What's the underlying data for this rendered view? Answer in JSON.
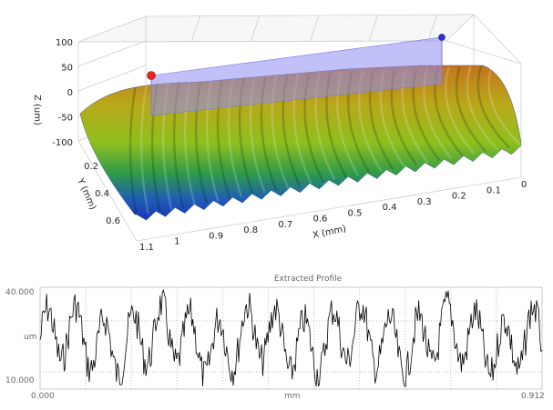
{
  "view3d": {
    "z_axis_label": "Z (um)",
    "y_axis_label": "Y (mm)",
    "x_axis_label": "X (mm)",
    "z_ticks": [
      "100",
      "50",
      "0",
      "-50",
      "-100"
    ],
    "y_ticks": [
      "0.2",
      "0.4",
      "0.6"
    ],
    "x_ticks": [
      "1.1",
      "1",
      "0.9",
      "0.8",
      "0.7",
      "0.6",
      "0.5",
      "0.4",
      "0.3",
      "0.2",
      "0.1",
      "0"
    ],
    "colors": {
      "marker_left": "#e8261f",
      "marker_right": "#2f2fd6",
      "cut_plane": "#8f8cf2",
      "surface_low": "#1b33b8",
      "surface_mid": "#8fbf1e",
      "surface_high": "#c4741c"
    }
  },
  "profile": {
    "title": "Extracted Profile",
    "y_top_label": "40.000",
    "y_mid_label": "um",
    "y_bottom_label": "10.000",
    "x_start_label": "0.000",
    "x_mid_label": "mm",
    "x_end_label": "0.912",
    "line_color": "#000000",
    "grid_color": "#bdbdbd"
  }
}
